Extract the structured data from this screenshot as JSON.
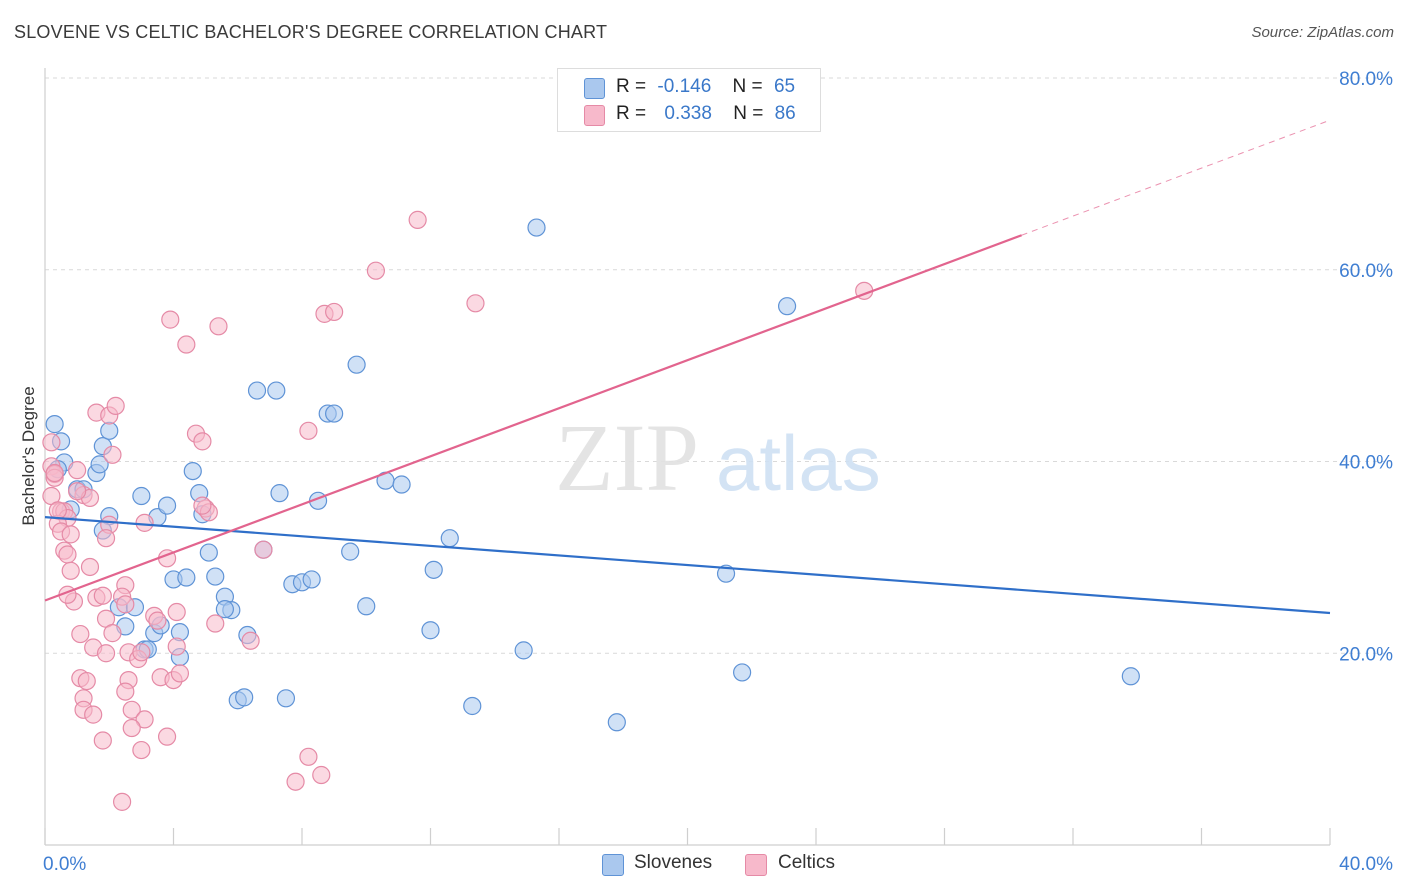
{
  "title": "SLOVENE VS CELTIC BACHELOR'S DEGREE CORRELATION CHART",
  "source": "Source: ZipAtlas.com",
  "watermark": {
    "zip": "ZIP",
    "atlas": "atlas"
  },
  "legend_top": {
    "rows": [
      {
        "r_label": "R =",
        "r_value": "-0.146",
        "n_label": "N =",
        "n_value": "65"
      },
      {
        "r_label": "R =",
        "r_value": "0.338",
        "n_label": "N =",
        "n_value": "86"
      }
    ]
  },
  "legend_bottom": {
    "items": [
      "Slovenes",
      "Celtics"
    ]
  },
  "colors": {
    "slovenes_fill": "#aac8ee",
    "slovenes_stroke": "#5f93d6",
    "slovenes_line": "#2f6fc9",
    "celtics_fill": "#f7b9cb",
    "celtics_stroke": "#e58aa6",
    "celtics_line": "#e2648e",
    "axis_text": "#3f7ed2",
    "grid": "#d9d9d9"
  },
  "chart_data": {
    "type": "scatter",
    "title": "SLOVENE VS CELTIC BACHELOR'S DEGREE CORRELATION CHART",
    "xlabel": "",
    "ylabel": "Bachelor's Degree",
    "xlim": [
      0,
      40
    ],
    "ylim": [
      0,
      80
    ],
    "x_tick_labels": [
      "0.0%",
      "40.0%"
    ],
    "y_tick_labels": [
      "20.0%",
      "40.0%",
      "60.0%",
      "80.0%"
    ],
    "y_ticks": [
      20,
      40,
      60,
      80
    ],
    "grid": true,
    "legend_position": "top-center",
    "series": [
      {
        "name": "Slovenes",
        "r": -0.146,
        "n": 65,
        "trend": {
          "x": [
            0,
            40
          ],
          "y": [
            34.2,
            24.2
          ]
        },
        "points": [
          [
            0.3,
            43.9
          ],
          [
            0.5,
            42.1
          ],
          [
            0.6,
            39.9
          ],
          [
            1.0,
            37.1
          ],
          [
            1.2,
            37.1
          ],
          [
            0.8,
            35.0
          ],
          [
            1.6,
            38.8
          ],
          [
            1.8,
            41.6
          ],
          [
            2.0,
            43.2
          ],
          [
            1.7,
            39.7
          ],
          [
            2.0,
            34.3
          ],
          [
            1.8,
            32.8
          ],
          [
            3.0,
            36.4
          ],
          [
            3.5,
            34.2
          ],
          [
            3.8,
            35.4
          ],
          [
            4.6,
            39.0
          ],
          [
            4.8,
            36.7
          ],
          [
            4.9,
            34.5
          ],
          [
            5.1,
            30.5
          ],
          [
            5.3,
            28.0
          ],
          [
            4.0,
            27.7
          ],
          [
            4.4,
            27.9
          ],
          [
            5.6,
            25.9
          ],
          [
            5.8,
            24.5
          ],
          [
            5.6,
            24.6
          ],
          [
            2.3,
            24.8
          ],
          [
            2.8,
            24.8
          ],
          [
            2.5,
            22.8
          ],
          [
            3.4,
            22.1
          ],
          [
            3.6,
            22.9
          ],
          [
            4.2,
            22.2
          ],
          [
            6.3,
            21.9
          ],
          [
            4.2,
            19.6
          ],
          [
            3.1,
            20.4
          ],
          [
            3.2,
            20.4
          ],
          [
            6.0,
            15.1
          ],
          [
            6.2,
            15.4
          ],
          [
            7.5,
            15.3
          ],
          [
            6.6,
            47.4
          ],
          [
            7.2,
            47.4
          ],
          [
            7.3,
            36.7
          ],
          [
            8.5,
            35.9
          ],
          [
            6.8,
            30.8
          ],
          [
            7.7,
            27.2
          ],
          [
            8.0,
            27.4
          ],
          [
            8.3,
            27.7
          ],
          [
            8.8,
            45.0
          ],
          [
            9.0,
            45.0
          ],
          [
            9.7,
            50.1
          ],
          [
            10.6,
            38.0
          ],
          [
            11.1,
            37.6
          ],
          [
            9.5,
            30.6
          ],
          [
            10.0,
            24.9
          ],
          [
            12.6,
            32.0
          ],
          [
            12.1,
            28.7
          ],
          [
            12.0,
            22.4
          ],
          [
            13.3,
            14.5
          ],
          [
            15.3,
            64.4
          ],
          [
            14.9,
            20.3
          ],
          [
            17.8,
            12.8
          ],
          [
            21.2,
            28.3
          ],
          [
            21.7,
            18.0
          ],
          [
            23.1,
            56.2
          ],
          [
            33.8,
            17.6
          ],
          [
            0.4,
            39.2
          ]
        ]
      },
      {
        "name": "Celtics",
        "r": 0.338,
        "n": 86,
        "trend": {
          "x": [
            0,
            30.4
          ],
          "y": [
            25.5,
            63.6
          ]
        },
        "trend_extension": {
          "x": [
            30.4,
            40
          ],
          "y": [
            63.6,
            75.6
          ]
        },
        "points": [
          [
            0.2,
            39.5
          ],
          [
            0.3,
            38.7
          ],
          [
            0.3,
            38.3
          ],
          [
            0.2,
            36.4
          ],
          [
            0.5,
            34.8
          ],
          [
            0.6,
            34.8
          ],
          [
            0.7,
            34.1
          ],
          [
            0.4,
            33.5
          ],
          [
            0.5,
            32.7
          ],
          [
            0.8,
            32.4
          ],
          [
            0.6,
            30.7
          ],
          [
            0.7,
            30.3
          ],
          [
            0.8,
            28.6
          ],
          [
            0.9,
            25.4
          ],
          [
            0.2,
            42.0
          ],
          [
            1.0,
            39.1
          ],
          [
            1.2,
            36.5
          ],
          [
            1.4,
            36.2
          ],
          [
            1.6,
            45.1
          ],
          [
            2.0,
            44.8
          ],
          [
            2.2,
            45.8
          ],
          [
            2.1,
            40.7
          ],
          [
            2.0,
            33.4
          ],
          [
            1.9,
            32.0
          ],
          [
            1.4,
            29.0
          ],
          [
            1.6,
            25.8
          ],
          [
            1.8,
            26.0
          ],
          [
            2.5,
            27.1
          ],
          [
            2.4,
            25.9
          ],
          [
            2.5,
            25.1
          ],
          [
            1.9,
            23.6
          ],
          [
            1.1,
            22.0
          ],
          [
            2.1,
            22.1
          ],
          [
            1.5,
            20.6
          ],
          [
            1.9,
            20.0
          ],
          [
            2.6,
            20.1
          ],
          [
            2.9,
            19.4
          ],
          [
            3.0,
            20.1
          ],
          [
            3.4,
            23.9
          ],
          [
            3.5,
            23.4
          ],
          [
            1.1,
            17.4
          ],
          [
            1.3,
            17.1
          ],
          [
            1.2,
            15.3
          ],
          [
            1.2,
            14.1
          ],
          [
            1.5,
            13.6
          ],
          [
            1.8,
            10.9
          ],
          [
            2.6,
            17.2
          ],
          [
            2.5,
            16.0
          ],
          [
            2.7,
            14.1
          ],
          [
            3.1,
            13.1
          ],
          [
            2.7,
            12.2
          ],
          [
            3.0,
            9.9
          ],
          [
            3.8,
            11.3
          ],
          [
            2.4,
            4.5
          ],
          [
            3.6,
            17.5
          ],
          [
            4.0,
            17.2
          ],
          [
            4.2,
            17.9
          ],
          [
            4.1,
            20.7
          ],
          [
            4.1,
            24.3
          ],
          [
            3.8,
            29.9
          ],
          [
            3.1,
            33.6
          ],
          [
            3.9,
            54.8
          ],
          [
            4.4,
            52.2
          ],
          [
            4.7,
            42.9
          ],
          [
            4.9,
            42.1
          ],
          [
            5.0,
            35.1
          ],
          [
            5.1,
            34.7
          ],
          [
            5.3,
            23.1
          ],
          [
            5.4,
            54.1
          ],
          [
            6.4,
            21.3
          ],
          [
            6.8,
            30.8
          ],
          [
            7.8,
            6.6
          ],
          [
            8.2,
            9.2
          ],
          [
            8.6,
            7.3
          ],
          [
            8.2,
            43.2
          ],
          [
            8.7,
            55.4
          ],
          [
            9.0,
            55.6
          ],
          [
            10.3,
            59.9
          ],
          [
            11.6,
            65.2
          ],
          [
            13.4,
            56.5
          ],
          [
            25.5,
            57.8
          ],
          [
            0.3,
            38.8
          ],
          [
            0.4,
            34.9
          ],
          [
            0.7,
            26.1
          ],
          [
            1.0,
            36.9
          ],
          [
            4.9,
            35.4
          ]
        ]
      }
    ]
  }
}
